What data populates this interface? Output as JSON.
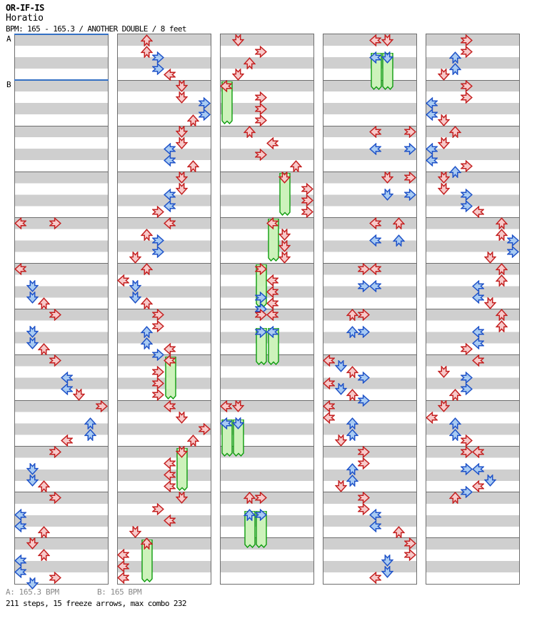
{
  "header": {
    "artist": "OR-IF-IS",
    "title": "Horatio",
    "info": "BPM: 165 - 165.3 / ANOTHER DOUBLE / 8 feet"
  },
  "footer": {
    "marker_a": "A: 165.3 BPM",
    "marker_b": "B: 165 BPM",
    "summary": "211 steps, 15 freeze arrows, max combo 232"
  },
  "colors": {
    "quarter_fill": "#f7caca",
    "quarter_stroke": "#c42020",
    "eighth_fill": "#a9cbf2",
    "eighth_stroke": "#1e52c8",
    "freeze_fill": "#cdf2bb",
    "freeze_stroke": "#0d9c0d",
    "stripe_gray": "#cfcfcf",
    "grid_gray": "#6e6e6e",
    "bpm_line_blue": "#3470c4",
    "footer_gray": "#8a8a8a"
  },
  "chart_data": {
    "type": "step-chart",
    "game": "DDR double step chart",
    "lanes": [
      "P1-Left",
      "P1-Down",
      "P1-Up",
      "P1-Right",
      "P2-Left",
      "P2-Down",
      "P2-Up",
      "P2-Right"
    ],
    "note_colors": {
      "4": "red quarter note",
      "8": "blue eighth note"
    },
    "beats_per_strip": 48,
    "measures_per_strip": 12,
    "bpm_markers": [
      {
        "label": "A",
        "strip": 0,
        "beat": 0
      },
      {
        "label": "B",
        "strip": 0,
        "beat": 4
      }
    ],
    "strips": [
      {
        "arrows": [
          [
            16,
            0,
            "4"
          ],
          [
            16,
            3,
            "4"
          ],
          [
            20,
            0,
            "4"
          ],
          [
            21.5,
            1,
            "8"
          ],
          [
            22.5,
            1,
            "8"
          ],
          [
            23,
            2,
            "4"
          ],
          [
            24,
            3,
            "4"
          ],
          [
            25.5,
            1,
            "8"
          ],
          [
            26.5,
            1,
            "8"
          ],
          [
            27,
            2,
            "4"
          ],
          [
            28,
            3,
            "4"
          ],
          [
            29.5,
            4,
            "8"
          ],
          [
            30.5,
            4,
            "8"
          ],
          [
            31,
            5,
            "4"
          ],
          [
            32,
            7,
            "4"
          ],
          [
            33.5,
            6,
            "8"
          ],
          [
            34.5,
            6,
            "8"
          ],
          [
            35,
            4,
            "4"
          ],
          [
            36,
            3,
            "4"
          ],
          [
            37.5,
            1,
            "8"
          ],
          [
            38.5,
            1,
            "8"
          ],
          [
            39,
            2,
            "4"
          ],
          [
            40,
            3,
            "4"
          ],
          [
            41.5,
            0,
            "8"
          ],
          [
            42.5,
            0,
            "8"
          ],
          [
            43,
            2,
            "4"
          ],
          [
            44,
            1,
            "4"
          ],
          [
            45,
            2,
            "4"
          ],
          [
            45.5,
            0,
            "8"
          ],
          [
            46.5,
            0,
            "8"
          ],
          [
            47,
            3,
            "4"
          ],
          [
            47.5,
            1,
            "8"
          ]
        ],
        "freezes": []
      },
      {
        "arrows": [
          [
            0,
            2,
            "4"
          ],
          [
            1,
            2,
            "4"
          ],
          [
            1.5,
            3,
            "8"
          ],
          [
            2.5,
            3,
            "8"
          ],
          [
            3,
            4,
            "4"
          ],
          [
            4,
            5,
            "4"
          ],
          [
            5,
            5,
            "4"
          ],
          [
            5.5,
            7,
            "8"
          ],
          [
            6.5,
            7,
            "8"
          ],
          [
            7,
            6,
            "4"
          ],
          [
            8,
            5,
            "4"
          ],
          [
            9,
            5,
            "4"
          ],
          [
            9.5,
            4,
            "8"
          ],
          [
            10.5,
            4,
            "8"
          ],
          [
            11,
            6,
            "4"
          ],
          [
            12,
            5,
            "4"
          ],
          [
            13,
            5,
            "4"
          ],
          [
            13.5,
            4,
            "8"
          ],
          [
            14.5,
            4,
            "8"
          ],
          [
            15,
            3,
            "4"
          ],
          [
            16,
            4,
            "4"
          ],
          [
            17,
            2,
            "4"
          ],
          [
            17.5,
            3,
            "8"
          ],
          [
            18.5,
            3,
            "8"
          ],
          [
            19,
            1,
            "4"
          ],
          [
            20,
            2,
            "4"
          ],
          [
            21,
            0,
            "4"
          ],
          [
            21.5,
            1,
            "8"
          ],
          [
            22.5,
            1,
            "8"
          ],
          [
            23,
            2,
            "4"
          ],
          [
            24,
            3,
            "4"
          ],
          [
            25,
            3,
            "4"
          ],
          [
            25.5,
            2,
            "8"
          ],
          [
            26.5,
            2,
            "8"
          ],
          [
            27,
            4,
            "4"
          ],
          [
            27.5,
            3,
            "8"
          ],
          [
            28,
            4,
            "4"
          ],
          [
            29,
            3,
            "4"
          ],
          [
            30,
            3,
            "4"
          ],
          [
            31,
            3,
            "4"
          ],
          [
            32,
            4,
            "4"
          ],
          [
            33,
            5,
            "4"
          ],
          [
            34,
            7,
            "4"
          ],
          [
            35,
            6,
            "4"
          ],
          [
            36,
            5,
            "4"
          ],
          [
            37,
            4,
            "4"
          ],
          [
            38,
            4,
            "4"
          ],
          [
            39,
            4,
            "4"
          ],
          [
            40,
            5,
            "4"
          ],
          [
            41,
            3,
            "4"
          ],
          [
            42,
            4,
            "4"
          ],
          [
            43,
            1,
            "4"
          ],
          [
            44,
            2,
            "4"
          ],
          [
            45,
            0,
            "4"
          ],
          [
            46,
            0,
            "4"
          ],
          [
            47,
            0,
            "4"
          ]
        ],
        "freezes": [
          [
            4,
            28,
            31.75
          ],
          [
            5,
            36,
            39.75
          ],
          [
            2,
            44,
            47.75
          ]
        ]
      },
      {
        "arrows": [
          [
            0,
            1,
            "4"
          ],
          [
            1,
            3,
            "4"
          ],
          [
            2,
            2,
            "4"
          ],
          [
            3,
            1,
            "4"
          ],
          [
            4,
            0,
            "4"
          ],
          [
            5,
            3,
            "4"
          ],
          [
            6,
            3,
            "4"
          ],
          [
            7,
            3,
            "4"
          ],
          [
            8,
            2,
            "4"
          ],
          [
            9,
            4,
            "4"
          ],
          [
            10,
            3,
            "4"
          ],
          [
            11,
            6,
            "4"
          ],
          [
            12,
            5,
            "4"
          ],
          [
            13,
            7,
            "4"
          ],
          [
            14,
            7,
            "4"
          ],
          [
            15,
            7,
            "4"
          ],
          [
            16,
            4,
            "4"
          ],
          [
            17,
            5,
            "4"
          ],
          [
            18,
            5,
            "4"
          ],
          [
            19,
            5,
            "4"
          ],
          [
            20,
            3,
            "4"
          ],
          [
            21,
            4,
            "4"
          ],
          [
            22,
            4,
            "4"
          ],
          [
            22.5,
            3,
            "8"
          ],
          [
            23,
            4,
            "4"
          ],
          [
            23.5,
            3,
            "8"
          ],
          [
            24,
            3,
            "4"
          ],
          [
            24,
            4,
            "4"
          ],
          [
            25.5,
            3,
            "8"
          ],
          [
            25.5,
            4,
            "8"
          ],
          [
            32,
            0,
            "4"
          ],
          [
            32,
            1,
            "4"
          ],
          [
            33.5,
            0,
            "8"
          ],
          [
            33.5,
            1,
            "8"
          ],
          [
            40,
            2,
            "4"
          ],
          [
            40,
            3,
            "4"
          ],
          [
            41.5,
            2,
            "8"
          ],
          [
            41.5,
            3,
            "8"
          ]
        ],
        "freezes": [
          [
            0,
            4,
            7.75
          ],
          [
            5,
            12,
            15.75
          ],
          [
            4,
            16,
            19.75
          ],
          [
            3,
            20,
            23.75
          ],
          [
            3,
            25.5,
            28.75
          ],
          [
            4,
            25.5,
            28.75
          ],
          [
            0,
            33.5,
            36.75
          ],
          [
            1,
            33.5,
            36.75
          ],
          [
            2,
            41.5,
            44.75
          ],
          [
            3,
            41.5,
            44.75
          ]
        ]
      },
      {
        "arrows": [
          [
            0,
            4,
            "4"
          ],
          [
            0,
            5,
            "4"
          ],
          [
            1.5,
            4,
            "8"
          ],
          [
            1.5,
            5,
            "8"
          ],
          [
            8,
            4,
            "4"
          ],
          [
            8,
            7,
            "4"
          ],
          [
            9.5,
            4,
            "8"
          ],
          [
            9.5,
            7,
            "8"
          ],
          [
            12,
            5,
            "4"
          ],
          [
            12,
            7,
            "4"
          ],
          [
            13.5,
            5,
            "8"
          ],
          [
            13.5,
            7,
            "8"
          ],
          [
            16,
            4,
            "4"
          ],
          [
            16,
            6,
            "4"
          ],
          [
            17.5,
            4,
            "8"
          ],
          [
            17.5,
            6,
            "8"
          ],
          [
            20,
            3,
            "4"
          ],
          [
            20,
            4,
            "4"
          ],
          [
            21.5,
            3,
            "8"
          ],
          [
            21.5,
            4,
            "8"
          ],
          [
            24,
            2,
            "4"
          ],
          [
            24,
            3,
            "4"
          ],
          [
            25.5,
            2,
            "8"
          ],
          [
            25.5,
            3,
            "8"
          ],
          [
            28,
            0,
            "4"
          ],
          [
            28.5,
            1,
            "8"
          ],
          [
            29,
            2,
            "4"
          ],
          [
            29.5,
            3,
            "8"
          ],
          [
            30,
            0,
            "4"
          ],
          [
            30.5,
            1,
            "8"
          ],
          [
            31,
            2,
            "4"
          ],
          [
            31.5,
            3,
            "8"
          ],
          [
            32,
            0,
            "4"
          ],
          [
            33,
            0,
            "4"
          ],
          [
            33.5,
            2,
            "8"
          ],
          [
            34.5,
            2,
            "8"
          ],
          [
            35,
            1,
            "4"
          ],
          [
            36,
            3,
            "4"
          ],
          [
            37,
            3,
            "4"
          ],
          [
            37.5,
            2,
            "8"
          ],
          [
            38.5,
            2,
            "8"
          ],
          [
            39,
            1,
            "4"
          ],
          [
            40,
            3,
            "4"
          ],
          [
            41,
            3,
            "4"
          ],
          [
            41.5,
            4,
            "8"
          ],
          [
            42.5,
            4,
            "8"
          ],
          [
            43,
            6,
            "4"
          ],
          [
            44,
            7,
            "4"
          ],
          [
            45,
            7,
            "4"
          ],
          [
            45.5,
            5,
            "8"
          ],
          [
            46.5,
            5,
            "8"
          ],
          [
            47,
            4,
            "4"
          ]
        ],
        "freezes": [
          [
            4,
            1.5,
            4.75
          ],
          [
            5,
            1.5,
            4.75
          ]
        ]
      },
      {
        "arrows": [
          [
            0,
            3,
            "4"
          ],
          [
            1,
            3,
            "4"
          ],
          [
            1.5,
            2,
            "8"
          ],
          [
            2.5,
            2,
            "8"
          ],
          [
            3,
            1,
            "4"
          ],
          [
            4,
            3,
            "4"
          ],
          [
            5,
            3,
            "4"
          ],
          [
            5.5,
            0,
            "8"
          ],
          [
            6.5,
            0,
            "8"
          ],
          [
            7,
            1,
            "4"
          ],
          [
            8,
            2,
            "4"
          ],
          [
            9,
            1,
            "4"
          ],
          [
            9.5,
            0,
            "8"
          ],
          [
            10.5,
            0,
            "8"
          ],
          [
            11,
            3,
            "4"
          ],
          [
            11.5,
            2,
            "8"
          ],
          [
            12,
            1,
            "4"
          ],
          [
            13,
            1,
            "4"
          ],
          [
            13.5,
            3,
            "8"
          ],
          [
            14.5,
            3,
            "8"
          ],
          [
            15,
            4,
            "4"
          ],
          [
            16,
            6,
            "4"
          ],
          [
            17,
            6,
            "4"
          ],
          [
            17.5,
            7,
            "8"
          ],
          [
            18.5,
            7,
            "8"
          ],
          [
            19,
            5,
            "4"
          ],
          [
            20,
            6,
            "4"
          ],
          [
            21,
            6,
            "4"
          ],
          [
            21.5,
            4,
            "8"
          ],
          [
            22.5,
            4,
            "8"
          ],
          [
            23,
            5,
            "4"
          ],
          [
            24,
            6,
            "4"
          ],
          [
            25,
            6,
            "4"
          ],
          [
            25.5,
            4,
            "8"
          ],
          [
            26.5,
            4,
            "8"
          ],
          [
            27,
            3,
            "4"
          ],
          [
            28,
            4,
            "4"
          ],
          [
            29,
            1,
            "4"
          ],
          [
            29.5,
            3,
            "8"
          ],
          [
            30.5,
            3,
            "8"
          ],
          [
            31,
            2,
            "4"
          ],
          [
            32,
            1,
            "4"
          ],
          [
            33,
            0,
            "4"
          ],
          [
            33.5,
            2,
            "8"
          ],
          [
            34.5,
            2,
            "8"
          ],
          [
            35,
            3,
            "4"
          ],
          [
            36,
            3,
            "4"
          ],
          [
            36,
            4,
            "4"
          ],
          [
            37.5,
            3,
            "8"
          ],
          [
            37.5,
            4,
            "8"
          ],
          [
            38.5,
            5,
            "8"
          ],
          [
            39,
            4,
            "4"
          ],
          [
            39.5,
            3,
            "8"
          ],
          [
            40,
            2,
            "4"
          ]
        ],
        "freezes": []
      }
    ]
  }
}
